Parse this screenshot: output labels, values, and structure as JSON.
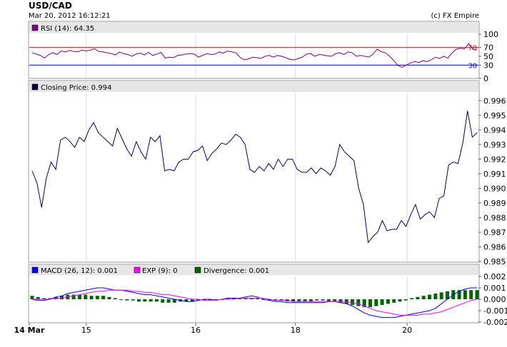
{
  "header": {
    "title": "USD/CAD",
    "timestamp": "Mar 20, 2012 16:12:21",
    "credit": "(c) FX Empire"
  },
  "colors": {
    "rsi_legend": "#800080",
    "rsi_line": "#800080",
    "rsi_70": "#ff0000",
    "rsi_30": "#0000ff",
    "price_legend": "#000040",
    "price_line": "#000060",
    "macd_line": "#0000ff",
    "exp_line": "#ff00ff",
    "divergence": "#006400",
    "panel_header": "#e6e6e6",
    "grid": "#dcdcdc"
  },
  "chart_data": [
    {
      "type": "line",
      "panel": "rsi",
      "label": "RSI (14): 64.35",
      "yticks": [
        0,
        30,
        50,
        70,
        100
      ],
      "ylim": [
        0,
        100
      ],
      "ref_levels": [
        70,
        30
      ],
      "values": [
        58,
        55,
        52,
        46,
        54,
        58,
        54,
        62,
        60,
        63,
        61,
        60,
        64,
        62,
        64,
        67,
        61,
        60,
        58,
        56,
        53,
        60,
        56,
        54,
        50,
        55,
        57,
        53,
        59,
        52,
        55,
        59,
        46,
        48,
        47,
        52,
        53,
        55,
        56,
        55,
        48,
        52,
        56,
        54,
        55,
        60,
        57,
        62,
        60,
        58,
        48,
        42,
        44,
        48,
        47,
        45,
        50,
        52,
        48,
        52,
        50,
        47,
        43,
        42,
        45,
        48,
        55,
        56,
        50,
        54,
        53,
        51,
        50,
        56,
        58,
        54,
        60,
        58,
        50,
        52,
        50,
        48,
        55,
        66,
        60,
        58,
        50,
        40,
        29,
        25,
        30,
        35,
        38,
        36,
        40,
        38,
        42,
        48,
        45,
        50,
        46,
        58,
        66,
        68,
        67,
        79,
        66,
        64
      ]
    },
    {
      "type": "line",
      "panel": "price",
      "label": "Closing Price: 0.994",
      "yticks": [
        0.985,
        0.986,
        0.987,
        0.988,
        0.989,
        0.99,
        0.991,
        0.992,
        0.993,
        0.994,
        0.995,
        0.996
      ],
      "ylim": [
        0.985,
        0.9965
      ],
      "values": [
        0.9912,
        0.9904,
        0.9887,
        0.9907,
        0.9918,
        0.9913,
        0.9933,
        0.9935,
        0.9932,
        0.9928,
        0.9935,
        0.9932,
        0.994,
        0.9945,
        0.9938,
        0.9935,
        0.9932,
        0.9929,
        0.9941,
        0.9934,
        0.9927,
        0.9922,
        0.9932,
        0.9925,
        0.992,
        0.9935,
        0.9932,
        0.9936,
        0.9912,
        0.9913,
        0.9912,
        0.9918,
        0.992,
        0.992,
        0.9925,
        0.9926,
        0.9929,
        0.9919,
        0.9924,
        0.9927,
        0.9931,
        0.993,
        0.9933,
        0.9937,
        0.9935,
        0.993,
        0.9913,
        0.9911,
        0.9915,
        0.9912,
        0.9917,
        0.9913,
        0.992,
        0.9915,
        0.992,
        0.992,
        0.9913,
        0.9911,
        0.9911,
        0.9914,
        0.991,
        0.9914,
        0.9912,
        0.9909,
        0.9915,
        0.993,
        0.9925,
        0.9922,
        0.9919,
        0.99,
        0.9889,
        0.9863,
        0.9867,
        0.987,
        0.9878,
        0.9871,
        0.9872,
        0.9872,
        0.9878,
        0.9874,
        0.9882,
        0.9889,
        0.9879,
        0.9882,
        0.9884,
        0.988,
        0.9893,
        0.9895,
        0.9916,
        0.9918,
        0.9917,
        0.9931,
        0.9953,
        0.9935,
        0.9938
      ]
    },
    {
      "type": "line",
      "panel": "macd",
      "series": [
        {
          "name": "MACD (26, 12): 0.001",
          "values": [
            0.0,
            -0.0001,
            -0.0001,
            0.0,
            0.0002,
            0.0003,
            0.0005,
            0.0006,
            0.0007,
            0.0008,
            0.0009,
            0.001,
            0.001,
            0.0009,
            0.0008,
            0.0008,
            0.0007,
            0.0006,
            0.0005,
            0.0004,
            0.0004,
            0.0003,
            0.0002,
            0.0001,
            0.0,
            -0.0001,
            -0.0002,
            -0.0002,
            -0.0001,
            0.0,
            0.0,
            -0.0001,
            0.0,
            0.0001,
            0.0001,
            0.0001,
            0.0002,
            0.0003,
            0.0002,
            0.0,
            -0.0001,
            -0.0002,
            -0.0002,
            -0.0003,
            -0.0003,
            -0.0003,
            -0.0003,
            -0.0003,
            -0.0003,
            -0.0003,
            -0.0002,
            -0.0002,
            -0.0003,
            -0.0004,
            -0.0006,
            -0.0009,
            -0.0012,
            -0.0014,
            -0.0015,
            -0.0016,
            -0.0016,
            -0.0016,
            -0.0015,
            -0.0014,
            -0.0013,
            -0.0012,
            -0.0011,
            -0.001,
            -0.0008,
            -0.0004,
            0.0,
            0.0004,
            0.0007,
            0.0009,
            0.001,
            0.001
          ]
        },
        {
          "name": "EXP (9): 0",
          "values": [
            0.0,
            0.0,
            0.0,
            0.0,
            0.0001,
            0.0001,
            0.0002,
            0.0003,
            0.0004,
            0.0005,
            0.0006,
            0.0007,
            0.0007,
            0.0008,
            0.0008,
            0.0008,
            0.0008,
            0.0007,
            0.0007,
            0.0006,
            0.0006,
            0.0005,
            0.0004,
            0.0004,
            0.0003,
            0.0002,
            0.0001,
            0.0,
            0.0,
            -0.0001,
            -0.0001,
            -0.0001,
            0.0,
            0.0,
            0.0,
            0.0001,
            0.0001,
            0.0001,
            0.0001,
            0.0001,
            0.0,
            -0.0001,
            -0.0001,
            -0.0001,
            -0.0002,
            -0.0002,
            -0.0002,
            -0.0002,
            -0.0002,
            -0.0002,
            -0.0002,
            -0.0002,
            -0.0002,
            -0.0002,
            -0.0003,
            -0.0004,
            -0.0006,
            -0.0008,
            -0.001,
            -0.0011,
            -0.0012,
            -0.0013,
            -0.0014,
            -0.0014,
            -0.0014,
            -0.0014,
            -0.0013,
            -0.0013,
            -0.0012,
            -0.0011,
            -0.0009,
            -0.0007,
            -0.0005,
            -0.0003,
            -0.0001,
            0.0
          ]
        }
      ],
      "divergence_label": "Divergence: 0.001",
      "divergence": [
        0.0003,
        0.0002,
        0.0001,
        0.0001,
        0.0002,
        0.0003,
        0.0004,
        0.0004,
        0.0004,
        0.0004,
        0.0003,
        0.0003,
        0.0003,
        0.0002,
        0.0001,
        0.0,
        -0.0001,
        -0.0001,
        -0.0002,
        -0.0002,
        -0.0002,
        -0.0002,
        -0.0003,
        -0.0003,
        -0.0003,
        -0.0002,
        -0.0002,
        -0.0002,
        -0.0001,
        -0.0001,
        0.0,
        0.0,
        0.0,
        0.0001,
        0.0001,
        0.0001,
        0.0001,
        0.0001,
        0.0001,
        0.0,
        -0.0001,
        -0.0001,
        -0.0001,
        -0.0002,
        -0.0002,
        -0.0002,
        -0.0002,
        -0.0002,
        -0.0001,
        -0.0001,
        -0.0002,
        -0.0002,
        -0.0003,
        -0.0004,
        -0.0005,
        -0.0006,
        -0.0007,
        -0.0007,
        -0.0006,
        -0.0005,
        -0.0004,
        -0.0003,
        -0.0002,
        -0.0001,
        0.0001,
        0.0002,
        0.0003,
        0.0004,
        0.0005,
        0.0006,
        0.0007,
        0.0008,
        0.0008,
        0.0008,
        0.0008,
        0.0008
      ],
      "yticks": [
        -0.002,
        -0.001,
        0.0,
        0.001,
        0.002
      ],
      "ytick_labels": [
        "-0.002",
        "-0.001",
        "0.000",
        "0.001",
        "0.002"
      ],
      "ylim": [
        -0.002,
        0.002
      ]
    }
  ],
  "xaxis": {
    "labels": [
      {
        "text": "14 Mar",
        "bold": true,
        "frac": 0.0
      },
      {
        "text": "15",
        "bold": false,
        "frac": 0.1269
      },
      {
        "text": "16",
        "bold": false,
        "frac": 0.3704
      },
      {
        "text": "18",
        "bold": false,
        "frac": 0.5926
      },
      {
        "text": "20",
        "bold": false,
        "frac": 0.8413
      }
    ]
  }
}
